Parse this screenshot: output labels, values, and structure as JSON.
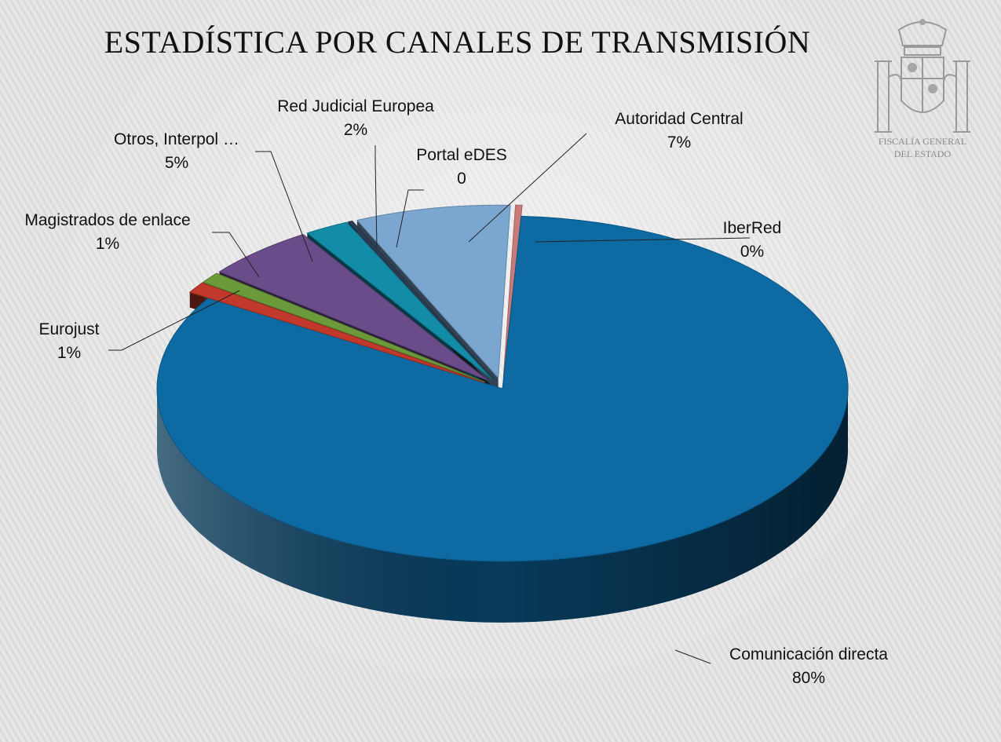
{
  "title": "ESTADÍSTICA POR CANALES DE TRANSMISIÓN",
  "emblem": {
    "line1": "FISCALÍA GENERAL",
    "line2": "DEL ESTADO"
  },
  "chart_data": {
    "type": "pie",
    "title": "ESTADÍSTICA POR CANALES DE TRANSMISIÓN",
    "three_d": true,
    "slices": [
      {
        "name": "IberRed",
        "label": "0%",
        "value": 0.3,
        "color": "#c97b79"
      },
      {
        "name": "Comunicación directa",
        "label": "80%",
        "value": 80,
        "color": "#0e6aa3"
      },
      {
        "name": "Eurojust",
        "label": "1%",
        "value": 1,
        "color": "#c0392b"
      },
      {
        "name": "Magistrados de enlace",
        "label": "1%",
        "value": 1,
        "color": "#6a9a3a"
      },
      {
        "name": "Otros, Interpol …",
        "label": "5%",
        "value": 5,
        "color": "#6b4c8a"
      },
      {
        "name": "Red Judicial Europea",
        "label": "2%",
        "value": 2,
        "color": "#138ca8"
      },
      {
        "name": "Portal eDES",
        "label": "0",
        "value": 0.2,
        "color": "#2c3e55"
      },
      {
        "name": "Autoridad Central",
        "label": "7%",
        "value": 7,
        "color": "#7aa6cf"
      }
    ]
  }
}
